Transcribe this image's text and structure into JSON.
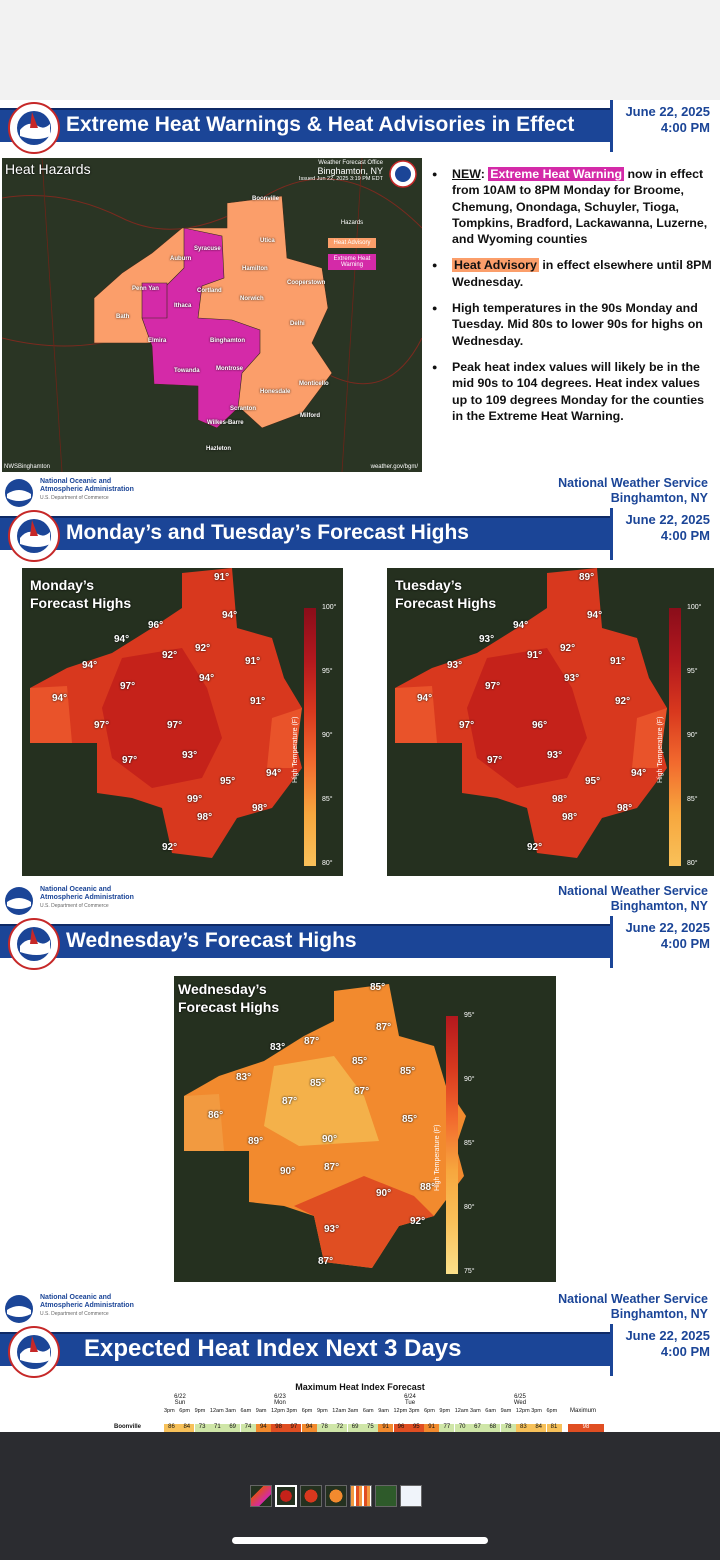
{
  "slide1": {
    "title": "Extreme Heat Warnings & Heat Advisories in Effect",
    "date": "June 22, 2025",
    "time": "4:00 PM",
    "map": {
      "label": "Heat Hazards",
      "office_line1": "Weather Forecast Office",
      "office_line2": "Binghamton, NY",
      "issued": "Issued Jun 22, 2025 3:19 PM EDT",
      "legend_title": "Hazards",
      "legend_advisory": "Heat Advisory",
      "legend_warning_1": "Extreme Heat",
      "legend_warning_2": "Warning",
      "credit_left": "NWSBinghamton",
      "credit_right": "weather.gov/bgm/",
      "cities": [
        "Boonville",
        "Syracuse",
        "Utica",
        "Auburn",
        "Hamilton",
        "Cooperstown",
        "Penn Yan",
        "Cortland",
        "Ithaca",
        "Norwich",
        "Bath",
        "Delhi",
        "Elmira",
        "Binghamton",
        "Towanda",
        "Montrose",
        "Monticello",
        "Honesdale",
        "Scranton",
        "Milford",
        "Wilkes-Barre",
        "Hazleton"
      ]
    },
    "bullets": {
      "b1_new": "NEW",
      "b1_colon": ": ",
      "b1_hl": "Extreme Heat Warning",
      "b1_rest": " now in effect from 10AM to 8PM Monday for Broome, Chemung, Onondaga, Schuyler, Tioga, Tompkins, Bradford, Lackawanna, Luzerne, and Wyoming counties",
      "b2_hl": "Heat Advisory",
      "b2_rest": " in effect elsewhere until 8PM Wednesday.",
      "b3": "High temperatures in the 90s Monday and Tuesday. Mid 80s to lower 90s for highs on Wednesday.",
      "b4": "Peak heat index values will likely be in the mid 90s to 104 degrees. Heat index values up to 109 degrees Monday for the counties in the Extreme Heat Warning."
    },
    "footer": {
      "noaa1": "National Oceanic and",
      "noaa2": "Atmospheric Administration",
      "noaa3": "U.S. Department of Commerce",
      "nws1": "National Weather Service",
      "nws2": "Binghamton, NY"
    }
  },
  "slide2": {
    "title": "Monday’s and Tuesday’s Forecast Highs",
    "date": "June 22, 2025",
    "time": "4:00 PM",
    "monday_label_1": "Monday’s",
    "monday_label_2": "Forecast Highs",
    "tuesday_label_1": "Tuesday’s",
    "tuesday_label_2": "Forecast Highs",
    "scale_ticks": [
      "100°",
      "95°",
      "90°",
      "85°",
      "80°"
    ],
    "scale_axis": "High Temperature (F)",
    "monday_temps": [
      "91°",
      "96°",
      "94°",
      "94°",
      "92°",
      "94°",
      "92°",
      "91°",
      "94°",
      "97°",
      "94°",
      "91°",
      "97°",
      "97°",
      "97°",
      "93°",
      "95°",
      "94°",
      "99°",
      "98°",
      "98°",
      "92°"
    ],
    "tuesday_temps": [
      "89°",
      "94°",
      "94°",
      "93°",
      "92°",
      "93°",
      "91°",
      "91°",
      "93°",
      "97°",
      "94°",
      "92°",
      "97°",
      "96°",
      "97°",
      "93°",
      "95°",
      "94°",
      "98°",
      "98°",
      "98°",
      "92°"
    ],
    "footer": {
      "noaa1": "National Oceanic and",
      "noaa2": "Atmospheric Administration",
      "noaa3": "U.S. Department of Commerce",
      "nws1": "National Weather Service",
      "nws2": "Binghamton, NY"
    }
  },
  "slide3": {
    "title": "Wednesday’s Forecast Highs",
    "date": "June 22, 2025",
    "time": "4:00 PM",
    "label_1": "Wednesday’s",
    "label_2": "Forecast Highs",
    "scale_ticks": [
      "95°",
      "90°",
      "85°",
      "80°",
      "75°"
    ],
    "scale_axis": "High Temperature (F)",
    "temps": [
      "85°",
      "87°",
      "87°",
      "83°",
      "85°",
      "85°",
      "83°",
      "87°",
      "85°",
      "87°",
      "85°",
      "89°",
      "90°",
      "86°",
      "90°",
      "87°",
      "88°",
      "90°",
      "93°",
      "92°",
      "87°"
    ],
    "footer": {
      "noaa1": "National Oceanic and",
      "noaa2": "Atmospheric Administration",
      "noaa3": "U.S. Department of Commerce",
      "nws1": "National Weather Service",
      "nws2": "Binghamton, NY"
    }
  },
  "slide4": {
    "title": "Expected Heat Index Next 3 Days",
    "date": "June 22, 2025",
    "time": "4:00 PM",
    "table_title": "Maximum Heat Index Forecast",
    "days": [
      {
        "date": "6/22",
        "day": "Sun"
      },
      {
        "date": "6/23",
        "day": "Mon"
      },
      {
        "date": "6/24",
        "day": "Tue"
      },
      {
        "date": "6/25",
        "day": "Wed"
      }
    ],
    "max_header": "Maximum",
    "hours": [
      "3pm",
      "6pm",
      "9pm",
      "12am",
      "3am",
      "6am",
      "9am",
      "12pm",
      "3pm",
      "6pm",
      "9pm",
      "12am",
      "3am",
      "6am",
      "9am",
      "12pm",
      "3pm",
      "6pm",
      "9pm",
      "12am",
      "3am",
      "6am",
      "9am",
      "12pm",
      "3pm",
      "6pm"
    ],
    "row_label": "Boonville",
    "row_values": [
      "86",
      "84",
      "73",
      "71",
      "69",
      "74",
      "94",
      "98",
      "97",
      "94",
      "78",
      "72",
      "69",
      "75",
      "91",
      "96",
      "95",
      "91",
      "77",
      "70",
      "67",
      "68",
      "78",
      "83",
      "84",
      "81"
    ],
    "row_max": "98"
  },
  "colors": {
    "nws_blue": "#1b4597",
    "warning_magenta": "#d42aa8",
    "advisory_orange": "#fb9e6a",
    "map_bg": "#24311f"
  }
}
